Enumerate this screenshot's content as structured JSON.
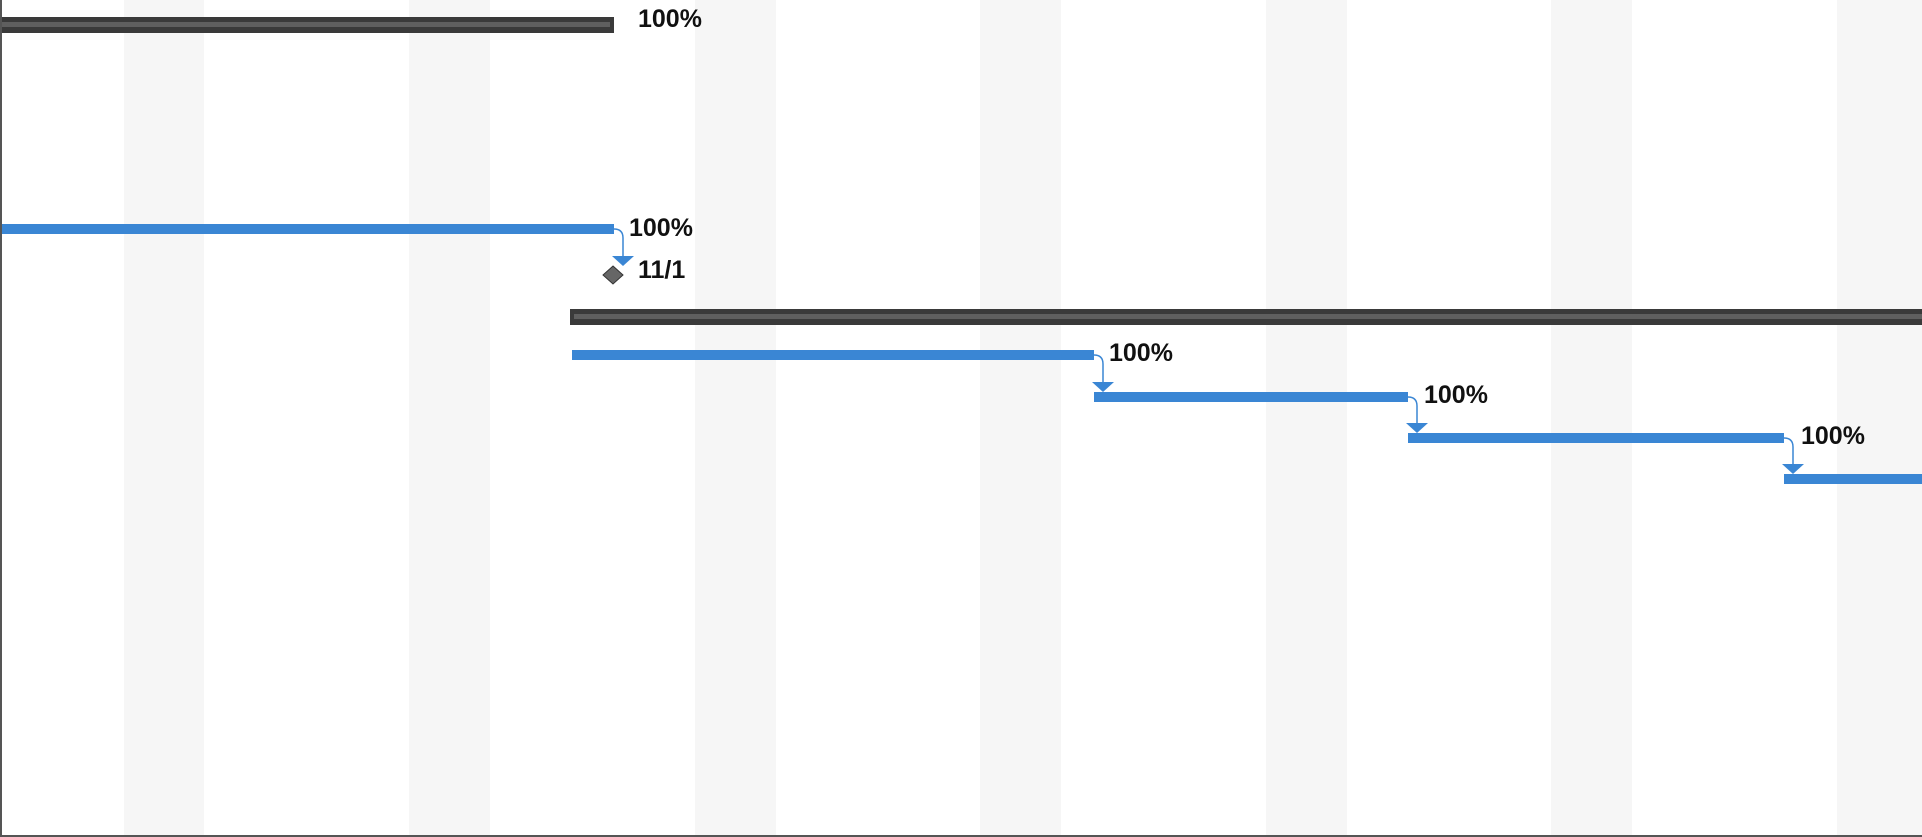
{
  "gantt": {
    "colors": {
      "background": "#ffffff",
      "weekend_shade": "#f6f6f6",
      "summary_bar": "#5f5f5f",
      "summary_bar_edge": "#3a3a3a",
      "task_bar": "#3a86d4",
      "milestone": "#666666",
      "link_line": "#3a86d4",
      "border": "#555555"
    },
    "rows": [
      {
        "kind": "summary",
        "label": "100%",
        "label_name": "summary-1-progress-label"
      },
      {
        "kind": "task",
        "label": "100%",
        "label_name": "task-1-progress-label"
      },
      {
        "kind": "milestone",
        "label": "11/1",
        "label_name": "milestone-date-label"
      },
      {
        "kind": "summary",
        "label": "",
        "label_name": "summary-2-progress-label"
      },
      {
        "kind": "task",
        "label": "100%",
        "label_name": "task-2-progress-label"
      },
      {
        "kind": "task",
        "label": "100%",
        "label_name": "task-3-progress-label"
      },
      {
        "kind": "task",
        "label": "100%",
        "label_name": "task-4-progress-label"
      },
      {
        "kind": "task",
        "label": "",
        "label_name": "task-5-progress-label"
      }
    ]
  }
}
